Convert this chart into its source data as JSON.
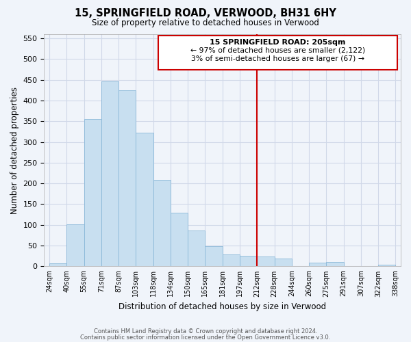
{
  "title": "15, SPRINGFIELD ROAD, VERWOOD, BH31 6HY",
  "subtitle": "Size of property relative to detached houses in Verwood",
  "xlabel": "Distribution of detached houses by size in Verwood",
  "ylabel": "Number of detached properties",
  "bar_labels": [
    "24sqm",
    "40sqm",
    "55sqm",
    "71sqm",
    "87sqm",
    "103sqm",
    "118sqm",
    "134sqm",
    "150sqm",
    "165sqm",
    "181sqm",
    "197sqm",
    "212sqm",
    "228sqm",
    "244sqm",
    "260sqm",
    "275sqm",
    "291sqm",
    "307sqm",
    "322sqm",
    "338sqm"
  ],
  "bar_heights": [
    7,
    101,
    355,
    446,
    424,
    323,
    208,
    129,
    86,
    48,
    29,
    26,
    24,
    19,
    0,
    8,
    10,
    0,
    0,
    3
  ],
  "bar_color": "#c8dff0",
  "bar_edge_color": "#8ab8d8",
  "grid_color": "#d0d8e8",
  "vline_color": "#cc0000",
  "ylim": [
    0,
    560
  ],
  "yticks": [
    0,
    50,
    100,
    150,
    200,
    250,
    300,
    350,
    400,
    450,
    500,
    550
  ],
  "annotation_title": "15 SPRINGFIELD ROAD: 205sqm",
  "annotation_line1": "← 97% of detached houses are smaller (2,122)",
  "annotation_line2": "3% of semi-detached houses are larger (67) →",
  "footnote1": "Contains HM Land Registry data © Crown copyright and database right 2024.",
  "footnote2": "Contains public sector information licensed under the Open Government Licence v3.0.",
  "bg_color": "#f0f4fa"
}
